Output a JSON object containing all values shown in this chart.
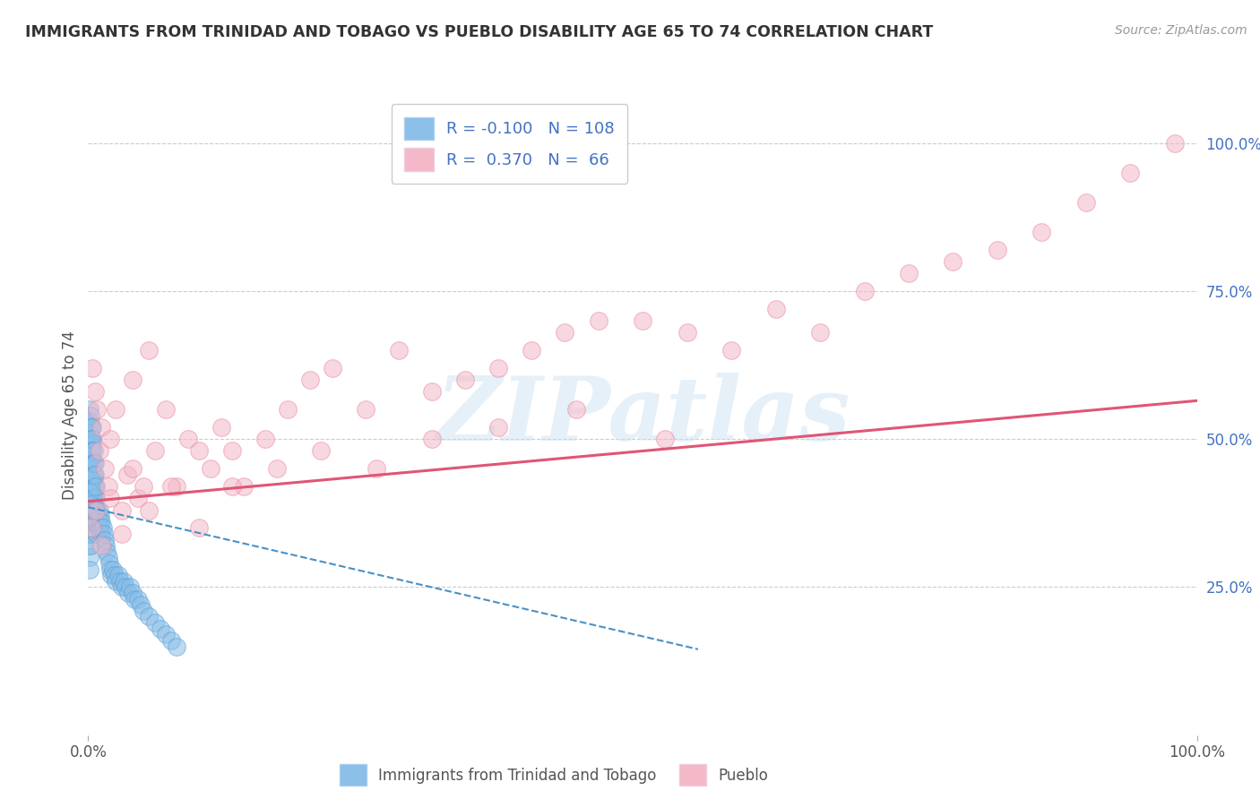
{
  "title": "IMMIGRANTS FROM TRINIDAD AND TOBAGO VS PUEBLO DISABILITY AGE 65 TO 74 CORRELATION CHART",
  "source": "Source: ZipAtlas.com",
  "ylabel": "Disability Age 65 to 74",
  "blue_r": -0.1,
  "blue_n": 108,
  "pink_r": 0.37,
  "pink_n": 66,
  "blue_color": "#8bbfe8",
  "pink_color": "#f4b8c8",
  "blue_edge_color": "#5a9fd4",
  "pink_edge_color": "#e88aa0",
  "blue_line_color": "#4a90c4",
  "pink_line_color": "#e05575",
  "legend_blue_label": "Immigrants from Trinidad and Tobago",
  "legend_pink_label": "Pueblo",
  "watermark_text": "ZIPatlas",
  "background_color": "#ffffff",
  "grid_color": "#cccccc",
  "xlim": [
    0.0,
    1.0
  ],
  "ylim": [
    0.0,
    1.08
  ],
  "y_tick_values": [
    0.25,
    0.5,
    0.75,
    1.0
  ],
  "y_tick_labels": [
    "25.0%",
    "50.0%",
    "75.0%",
    "100.0%"
  ],
  "x_tick_values": [
    0.0,
    1.0
  ],
  "x_tick_labels": [
    "0.0%",
    "100.0%"
  ],
  "blue_trend_x0": 0.0,
  "blue_trend_y0": 0.385,
  "blue_trend_x1": 0.55,
  "blue_trend_y1": 0.145,
  "pink_trend_x0": 0.0,
  "pink_trend_y0": 0.395,
  "pink_trend_x1": 1.0,
  "pink_trend_y1": 0.565,
  "blue_scatter_x": [
    0.001,
    0.001,
    0.001,
    0.001,
    0.001,
    0.001,
    0.001,
    0.001,
    0.002,
    0.002,
    0.002,
    0.002,
    0.002,
    0.002,
    0.002,
    0.002,
    0.003,
    0.003,
    0.003,
    0.003,
    0.003,
    0.003,
    0.003,
    0.004,
    0.004,
    0.004,
    0.004,
    0.004,
    0.004,
    0.005,
    0.005,
    0.005,
    0.005,
    0.005,
    0.006,
    0.006,
    0.006,
    0.006,
    0.007,
    0.007,
    0.007,
    0.008,
    0.008,
    0.008,
    0.009,
    0.009,
    0.01,
    0.01,
    0.011,
    0.011,
    0.012,
    0.012,
    0.013,
    0.014,
    0.015,
    0.016,
    0.017,
    0.018,
    0.019,
    0.02,
    0.021,
    0.022,
    0.024,
    0.025,
    0.027,
    0.029,
    0.03,
    0.032,
    0.034,
    0.036,
    0.038,
    0.04,
    0.042,
    0.045,
    0.047,
    0.05,
    0.055,
    0.06,
    0.065,
    0.07,
    0.075,
    0.08,
    0.001,
    0.001,
    0.001,
    0.001,
    0.001,
    0.001,
    0.001,
    0.001,
    0.001,
    0.001,
    0.002,
    0.002,
    0.002,
    0.002,
    0.002,
    0.002,
    0.003,
    0.003,
    0.003,
    0.003,
    0.004,
    0.004,
    0.004,
    0.004,
    0.005,
    0.005,
    0.005,
    0.006,
    0.006,
    0.007
  ],
  "blue_scatter_y": [
    0.42,
    0.4,
    0.38,
    0.36,
    0.34,
    0.32,
    0.3,
    0.28,
    0.48,
    0.45,
    0.42,
    0.4,
    0.38,
    0.36,
    0.34,
    0.32,
    0.5,
    0.47,
    0.44,
    0.42,
    0.4,
    0.38,
    0.36,
    0.52,
    0.49,
    0.46,
    0.44,
    0.42,
    0.4,
    0.44,
    0.42,
    0.4,
    0.38,
    0.36,
    0.42,
    0.4,
    0.38,
    0.36,
    0.4,
    0.38,
    0.36,
    0.38,
    0.36,
    0.34,
    0.37,
    0.35,
    0.38,
    0.36,
    0.37,
    0.35,
    0.36,
    0.34,
    0.35,
    0.34,
    0.33,
    0.32,
    0.31,
    0.3,
    0.29,
    0.28,
    0.27,
    0.28,
    0.27,
    0.26,
    0.27,
    0.26,
    0.25,
    0.26,
    0.25,
    0.24,
    0.25,
    0.24,
    0.23,
    0.23,
    0.22,
    0.21,
    0.2,
    0.19,
    0.18,
    0.17,
    0.16,
    0.15,
    0.55,
    0.53,
    0.51,
    0.49,
    0.47,
    0.45,
    0.43,
    0.41,
    0.39,
    0.37,
    0.54,
    0.52,
    0.5,
    0.48,
    0.46,
    0.44,
    0.52,
    0.5,
    0.48,
    0.46,
    0.5,
    0.48,
    0.46,
    0.44,
    0.48,
    0.46,
    0.44,
    0.46,
    0.44,
    0.42
  ],
  "pink_scatter_x": [
    0.004,
    0.006,
    0.008,
    0.01,
    0.012,
    0.015,
    0.018,
    0.02,
    0.025,
    0.03,
    0.035,
    0.04,
    0.045,
    0.05,
    0.055,
    0.06,
    0.07,
    0.08,
    0.09,
    0.1,
    0.11,
    0.12,
    0.13,
    0.14,
    0.16,
    0.18,
    0.2,
    0.22,
    0.25,
    0.28,
    0.31,
    0.34,
    0.37,
    0.4,
    0.43,
    0.46,
    0.5,
    0.54,
    0.58,
    0.62,
    0.66,
    0.7,
    0.74,
    0.78,
    0.82,
    0.86,
    0.9,
    0.94,
    0.98,
    0.003,
    0.007,
    0.012,
    0.02,
    0.03,
    0.04,
    0.055,
    0.075,
    0.1,
    0.13,
    0.17,
    0.21,
    0.26,
    0.31,
    0.37,
    0.44,
    0.52
  ],
  "pink_scatter_y": [
    0.62,
    0.58,
    0.55,
    0.48,
    0.52,
    0.45,
    0.42,
    0.5,
    0.55,
    0.38,
    0.44,
    0.6,
    0.4,
    0.42,
    0.65,
    0.48,
    0.55,
    0.42,
    0.5,
    0.48,
    0.45,
    0.52,
    0.48,
    0.42,
    0.5,
    0.55,
    0.6,
    0.62,
    0.55,
    0.65,
    0.58,
    0.6,
    0.62,
    0.65,
    0.68,
    0.7,
    0.7,
    0.68,
    0.65,
    0.72,
    0.68,
    0.75,
    0.78,
    0.8,
    0.82,
    0.85,
    0.9,
    0.95,
    1.0,
    0.35,
    0.38,
    0.32,
    0.4,
    0.34,
    0.45,
    0.38,
    0.42,
    0.35,
    0.42,
    0.45,
    0.48,
    0.45,
    0.5,
    0.52,
    0.55,
    0.5
  ]
}
